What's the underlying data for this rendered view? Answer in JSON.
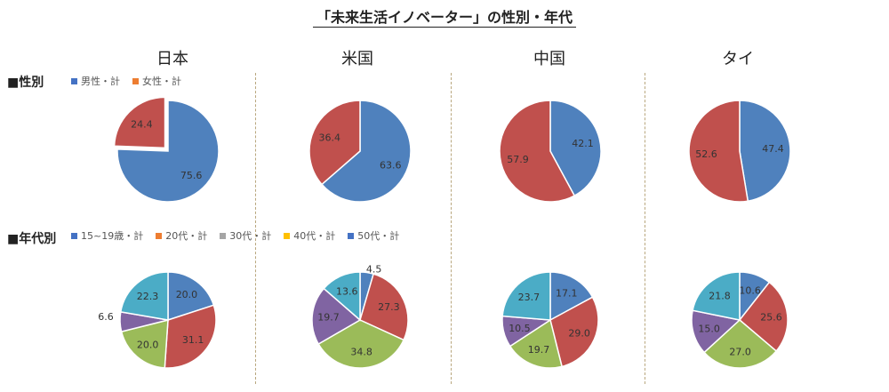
{
  "title": "「未来生活イノベーター」の性別・年代",
  "countries": [
    "日本",
    "米国",
    "中国",
    "タイ"
  ],
  "sections": {
    "gender": "■性別",
    "age": "■年代別"
  },
  "chart_data": [
    {
      "type": "pie",
      "group": "gender",
      "categories": [
        "男性・計",
        "女性・計"
      ],
      "colors": [
        "#4f81bd",
        "#c0504d"
      ],
      "legend_colors": [
        "#4472c4",
        "#ed7d31"
      ],
      "charts": [
        {
          "country": "日本",
          "values": [
            75.6,
            24.4
          ],
          "exploded": 1
        },
        {
          "country": "米国",
          "values": [
            63.6,
            36.4
          ]
        },
        {
          "country": "中国",
          "values": [
            42.1,
            57.9
          ]
        },
        {
          "country": "タイ",
          "values": [
            47.4,
            52.6
          ]
        }
      ]
    },
    {
      "type": "pie",
      "group": "age",
      "categories": [
        "15~19歳・計",
        "20代・計",
        "30代・計",
        "40代・計",
        "50代・計"
      ],
      "colors": [
        "#4f81bd",
        "#c0504d",
        "#9bbb59",
        "#8064a2",
        "#4bacc6"
      ],
      "legend_colors": [
        "#4472c4",
        "#ed7d31",
        "#a5a5a5",
        "#ffc000",
        "#4472c4"
      ],
      "charts": [
        {
          "country": "日本",
          "values": [
            20.0,
            31.1,
            20.0,
            6.6,
            22.3
          ]
        },
        {
          "country": "米国",
          "values": [
            4.5,
            27.3,
            34.8,
            19.7,
            13.6
          ]
        },
        {
          "country": "中国",
          "values": [
            17.1,
            29.0,
            19.7,
            10.5,
            23.7
          ]
        },
        {
          "country": "タイ",
          "values": [
            10.6,
            25.6,
            27.0,
            15.0,
            21.8
          ]
        }
      ]
    }
  ]
}
